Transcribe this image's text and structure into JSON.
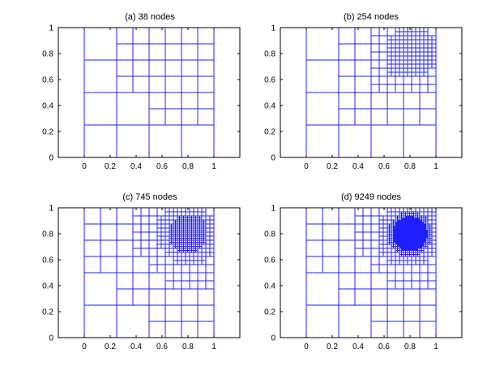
{
  "colors": {
    "mesh": "#2020ff",
    "axes": "#000000",
    "background": "#ffffff"
  },
  "chart_data": [
    {
      "type": "quadtree-mesh",
      "title": "(a) 38 nodes",
      "xlim": [
        -0.2,
        1.2
      ],
      "ylim": [
        0,
        1
      ],
      "xticks": [
        0,
        0.2,
        0.4,
        0.6,
        0.8,
        1
      ],
      "yticks": [
        0,
        0.2,
        0.4,
        0.6,
        0.8,
        1
      ],
      "grid": false,
      "refinement": {
        "center": [
          0.8,
          0.8
        ],
        "radius": 0.1,
        "max_depth": 3
      }
    },
    {
      "type": "quadtree-mesh",
      "title": "(b) 254 nodes",
      "xlim": [
        -0.2,
        1.2
      ],
      "ylim": [
        0,
        1
      ],
      "xticks": [
        0,
        0.2,
        0.4,
        0.6,
        0.8,
        1
      ],
      "yticks": [
        0,
        0.2,
        0.4,
        0.6,
        0.8,
        1
      ],
      "grid": false,
      "refinement": {
        "center": [
          0.8,
          0.8
        ],
        "radius": 0.1,
        "max_depth": 5
      }
    },
    {
      "type": "quadtree-mesh",
      "title": "(c) 745 nodes",
      "xlim": [
        -0.2,
        1.2
      ],
      "ylim": [
        0,
        1
      ],
      "xticks": [
        0,
        0.2,
        0.4,
        0.6,
        0.8,
        1
      ],
      "yticks": [
        0,
        0.2,
        0.4,
        0.6,
        0.8,
        1
      ],
      "grid": false,
      "refinement": {
        "center": [
          0.8,
          0.8
        ],
        "radius": 0.1,
        "max_depth": 6
      }
    },
    {
      "type": "quadtree-mesh",
      "title": "(d) 9249 nodes",
      "xlim": [
        -0.2,
        1.2
      ],
      "ylim": [
        0,
        1
      ],
      "xticks": [
        0,
        0.2,
        0.4,
        0.6,
        0.8,
        1
      ],
      "yticks": [
        0,
        0.2,
        0.4,
        0.6,
        0.8,
        1
      ],
      "grid": false,
      "refinement": {
        "center": [
          0.8,
          0.8
        ],
        "radius": 0.1,
        "max_depth": 8
      }
    }
  ]
}
